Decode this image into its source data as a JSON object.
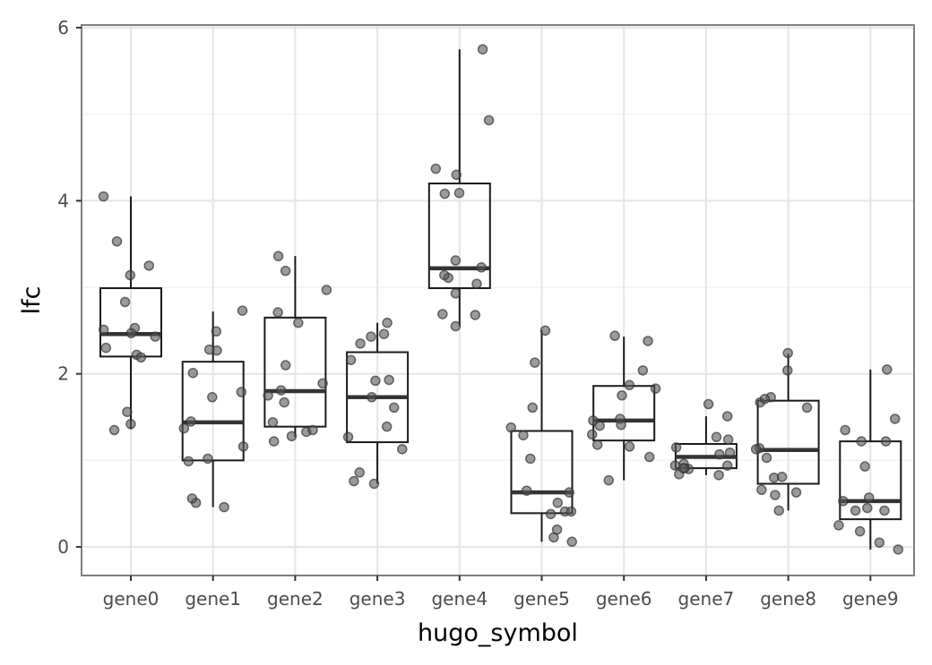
{
  "chart_data": {
    "type": "box",
    "title": "",
    "xlabel": "hugo_symbol",
    "ylabel": "lfc",
    "ylim": [
      -0.33,
      6.03
    ],
    "yticks": [
      0,
      2,
      4,
      6
    ],
    "grid": true,
    "theme": "light",
    "categories": [
      "gene0",
      "gene1",
      "gene2",
      "gene3",
      "gene4",
      "gene5",
      "gene6",
      "gene7",
      "gene8",
      "gene9"
    ],
    "boxes": [
      {
        "category": "gene0",
        "whisker_low": 1.36,
        "q1": 2.2,
        "median": 2.46,
        "q3": 2.99,
        "whisker_high": 4.05
      },
      {
        "category": "gene1",
        "whisker_low": 0.46,
        "q1": 1.0,
        "median": 1.44,
        "q3": 2.14,
        "whisker_high": 2.72
      },
      {
        "category": "gene2",
        "whisker_low": 1.27,
        "q1": 1.39,
        "median": 1.8,
        "q3": 2.65,
        "whisker_high": 3.36
      },
      {
        "category": "gene3",
        "whisker_low": 0.73,
        "q1": 1.21,
        "median": 1.73,
        "q3": 2.25,
        "whisker_high": 2.59
      },
      {
        "category": "gene4",
        "whisker_low": 2.55,
        "q1": 2.99,
        "median": 3.22,
        "q3": 4.2,
        "whisker_high": 5.75
      },
      {
        "category": "gene5",
        "whisker_low": 0.06,
        "q1": 0.39,
        "median": 0.63,
        "q3": 1.34,
        "whisker_high": 2.5
      },
      {
        "category": "gene6",
        "whisker_low": 0.77,
        "q1": 1.23,
        "median": 1.46,
        "q3": 1.86,
        "whisker_high": 2.43
      },
      {
        "category": "gene7",
        "whisker_low": 0.83,
        "q1": 0.91,
        "median": 1.04,
        "q3": 1.19,
        "whisker_high": 1.51
      },
      {
        "category": "gene8",
        "whisker_low": 0.42,
        "q1": 0.73,
        "median": 1.12,
        "q3": 1.69,
        "whisker_high": 2.23
      },
      {
        "category": "gene9",
        "whisker_low": -0.03,
        "q1": 0.32,
        "median": 0.53,
        "q3": 1.22,
        "whisker_high": 2.05
      }
    ],
    "points": [
      {
        "category": "gene0",
        "values": [
          3.14,
          2.53,
          2.3,
          1.35,
          1.56,
          2.47,
          2.51,
          2.43,
          2.22,
          2.83,
          3.53,
          3.25,
          2.19,
          4.05,
          1.42
        ]
      },
      {
        "category": "gene1",
        "values": [
          0.51,
          0.46,
          1.45,
          2.27,
          1.73,
          0.56,
          1.37,
          1.79,
          1.16,
          0.99,
          2.28,
          2.73,
          2.01,
          1.02,
          2.49
        ]
      },
      {
        "category": "gene2",
        "values": [
          1.33,
          1.81,
          1.22,
          2.97,
          1.28,
          2.71,
          2.59,
          1.67,
          1.44,
          1.35,
          2.1,
          3.19,
          1.75,
          1.89,
          3.36
        ]
      },
      {
        "category": "gene3",
        "values": [
          1.13,
          1.92,
          2.35,
          2.46,
          2.43,
          1.61,
          2.59,
          0.76,
          0.86,
          0.73,
          2.16,
          1.27,
          1.73,
          1.93,
          1.39
        ]
      },
      {
        "category": "gene4",
        "values": [
          4.93,
          3.11,
          3.31,
          4.09,
          2.55,
          3.23,
          4.3,
          2.93,
          3.14,
          2.69,
          2.68,
          4.37,
          4.08,
          3.04,
          5.75
        ]
      },
      {
        "category": "gene5",
        "values": [
          0.06,
          0.63,
          0.41,
          0.51,
          0.38,
          2.5,
          1.38,
          1.02,
          1.61,
          1.29,
          2.13,
          0.11,
          0.2,
          0.65,
          0.41
        ]
      },
      {
        "category": "gene6",
        "values": [
          1.3,
          2.44,
          1.87,
          1.48,
          1.18,
          1.83,
          1.41,
          2.38,
          1.16,
          1.75,
          1.4,
          2.04,
          1.04,
          0.77,
          1.46
        ]
      },
      {
        "category": "gene7",
        "values": [
          0.96,
          1.07,
          0.83,
          1.27,
          1.09,
          0.9,
          0.94,
          0.91,
          1.15,
          0.84,
          0.94,
          1.65,
          1.51,
          1.24,
          0.91
        ]
      },
      {
        "category": "gene8",
        "values": [
          2.24,
          1.14,
          0.8,
          2.04,
          1.67,
          0.42,
          1.73,
          0.6,
          1.61,
          1.71,
          1.03,
          1.13,
          0.63,
          0.66,
          0.81
        ]
      },
      {
        "category": "gene9",
        "values": [
          1.35,
          0.57,
          0.93,
          0.25,
          2.05,
          0.45,
          1.22,
          0.18,
          -0.03,
          0.42,
          0.05,
          0.42,
          1.22,
          0.53,
          1.48
        ]
      }
    ],
    "colors": {
      "panel_border": "#7f7f7f",
      "grid_major": "#e5e5e5",
      "grid_minor": "#f2f2f2",
      "box_stroke": "#1a1a1a",
      "median": "#333333",
      "point_fill": "#595959",
      "point_stroke": "#333333"
    }
  }
}
